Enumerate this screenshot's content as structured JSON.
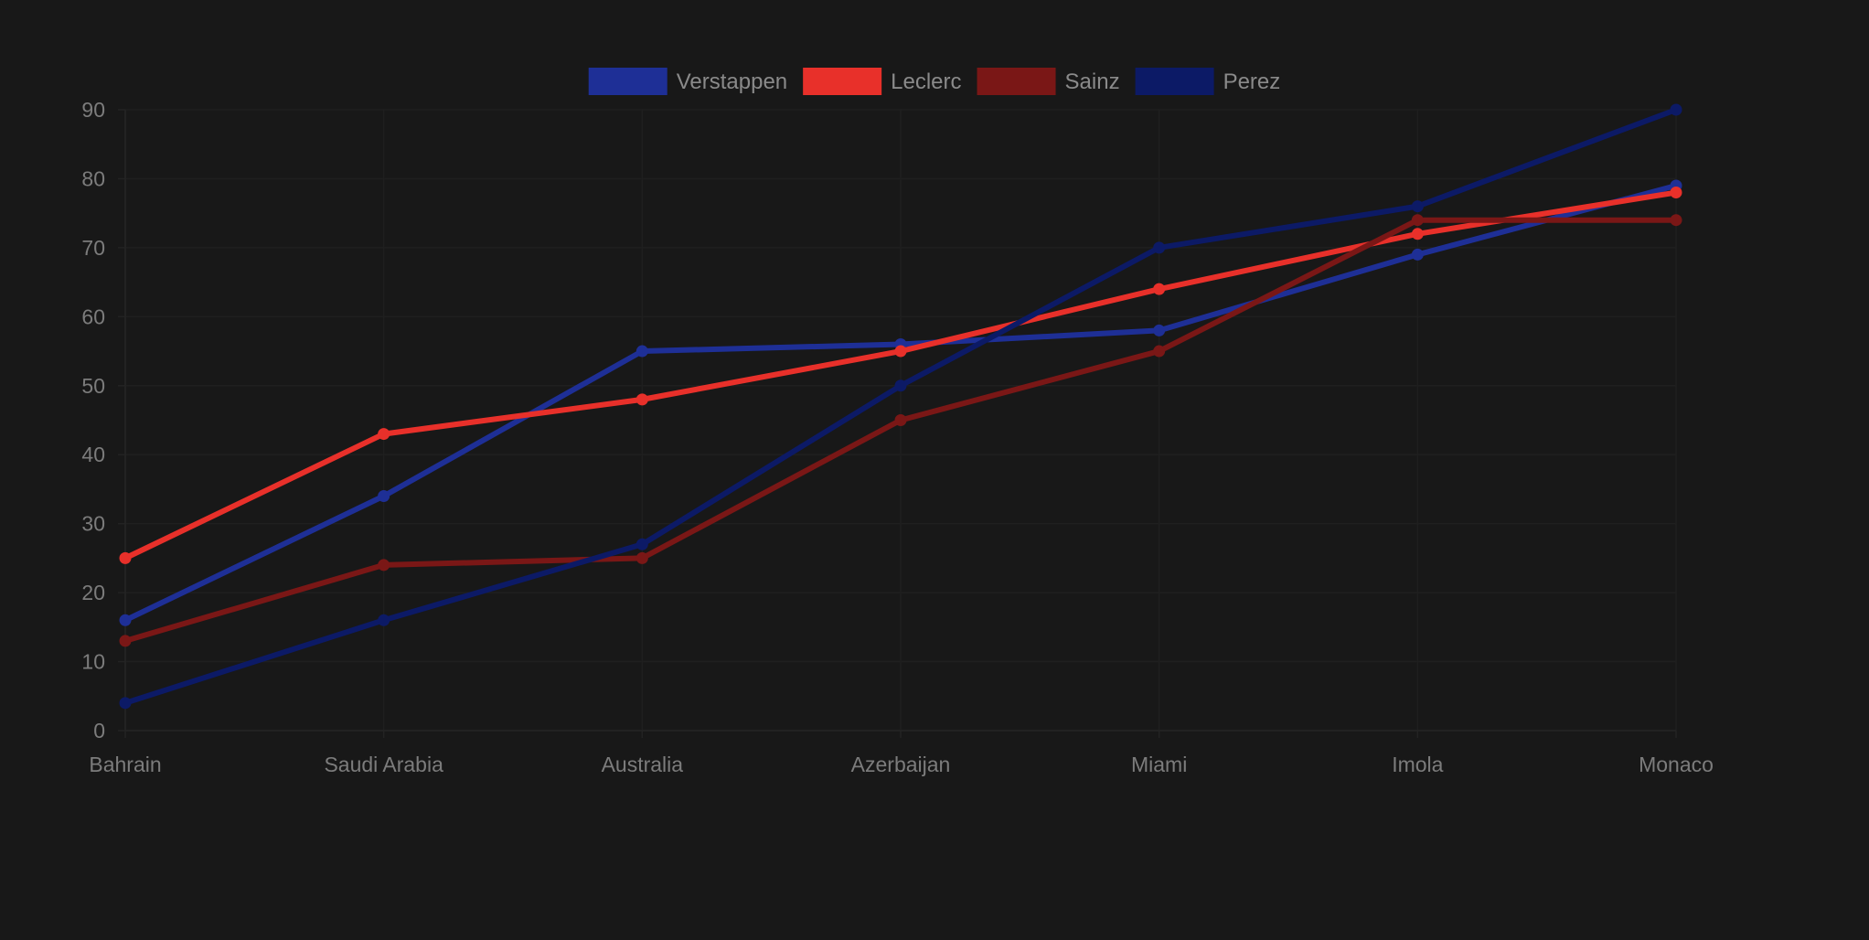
{
  "chart_data": {
    "type": "line",
    "title": "",
    "xlabel": "",
    "ylabel": "",
    "categories": [
      "Bahrain",
      "Saudi Arabia",
      "Australia",
      "Azerbaijan",
      "Miami",
      "Imola",
      "Monaco"
    ],
    "ylim": [
      0,
      90
    ],
    "yticks": [
      0,
      10,
      20,
      30,
      40,
      50,
      60,
      70,
      80,
      90
    ],
    "grid": true,
    "legend_position": "top-center",
    "series": [
      {
        "name": "Verstappen",
        "color": "#1e2f96",
        "values": [
          16,
          34,
          55,
          56,
          58,
          69,
          79
        ]
      },
      {
        "name": "Leclerc",
        "color": "#e8302a",
        "values": [
          25,
          43,
          48,
          55,
          64,
          72,
          78
        ]
      },
      {
        "name": "Sainz",
        "color": "#7a1716",
        "values": [
          13,
          24,
          25,
          45,
          55,
          74,
          74
        ]
      },
      {
        "name": "Perez",
        "color": "#0c1a66",
        "values": [
          4,
          16,
          27,
          50,
          70,
          76,
          90
        ]
      }
    ]
  }
}
